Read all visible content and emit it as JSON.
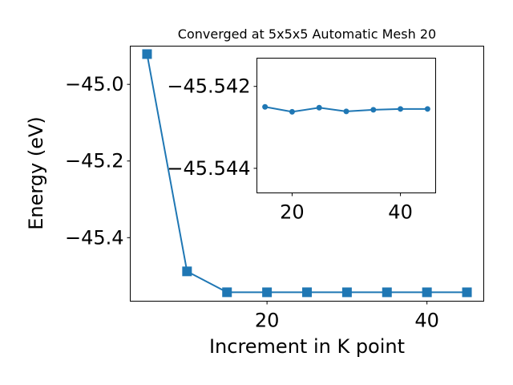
{
  "chart_data": [
    {
      "type": "line",
      "title": "Converged at 5x5x5 Automatic Mesh 20",
      "xlabel": "Increment in K point",
      "ylabel": "Energy (eV)",
      "marker": "square",
      "color": "#1f77b4",
      "xlim": [
        2.9,
        47.1
      ],
      "ylim": [
        -45.5658,
        -44.9002
      ],
      "x_ticks": [
        20,
        40
      ],
      "x_tick_labels": [
        "20",
        "40"
      ],
      "y_ticks": [
        -45.4,
        -45.2,
        -45.0
      ],
      "y_tick_labels": [
        "−45.4",
        "−45.2",
        "−45.0"
      ],
      "grid": false,
      "series": [
        {
          "x": [
            5,
            10,
            15,
            20,
            25,
            30,
            35,
            40,
            45
          ],
          "y": [
            -44.921,
            -45.488,
            -45.5425,
            -45.5426,
            -45.5425,
            -45.5426,
            -45.5426,
            -45.5426,
            -45.5426
          ]
        }
      ]
    },
    {
      "type": "line",
      "title": "",
      "xlabel": "",
      "ylabel": "",
      "marker": "circle",
      "color": "#1f77b4",
      "xlim": [
        13.5,
        46.5
      ],
      "ylim": [
        -45.5446,
        -45.54131
      ],
      "x_ticks": [
        20,
        40
      ],
      "x_tick_labels": [
        "20",
        "40"
      ],
      "y_ticks": [
        -45.544,
        -45.542
      ],
      "y_tick_labels": [
        "−45.544",
        "−45.542"
      ],
      "grid": false,
      "series": [
        {
          "x": [
            15,
            20,
            25,
            30,
            35,
            40,
            45
          ],
          "y": [
            -45.5425,
            -45.54262,
            -45.54252,
            -45.54261,
            -45.54257,
            -45.54255,
            -45.54255
          ]
        }
      ]
    }
  ]
}
